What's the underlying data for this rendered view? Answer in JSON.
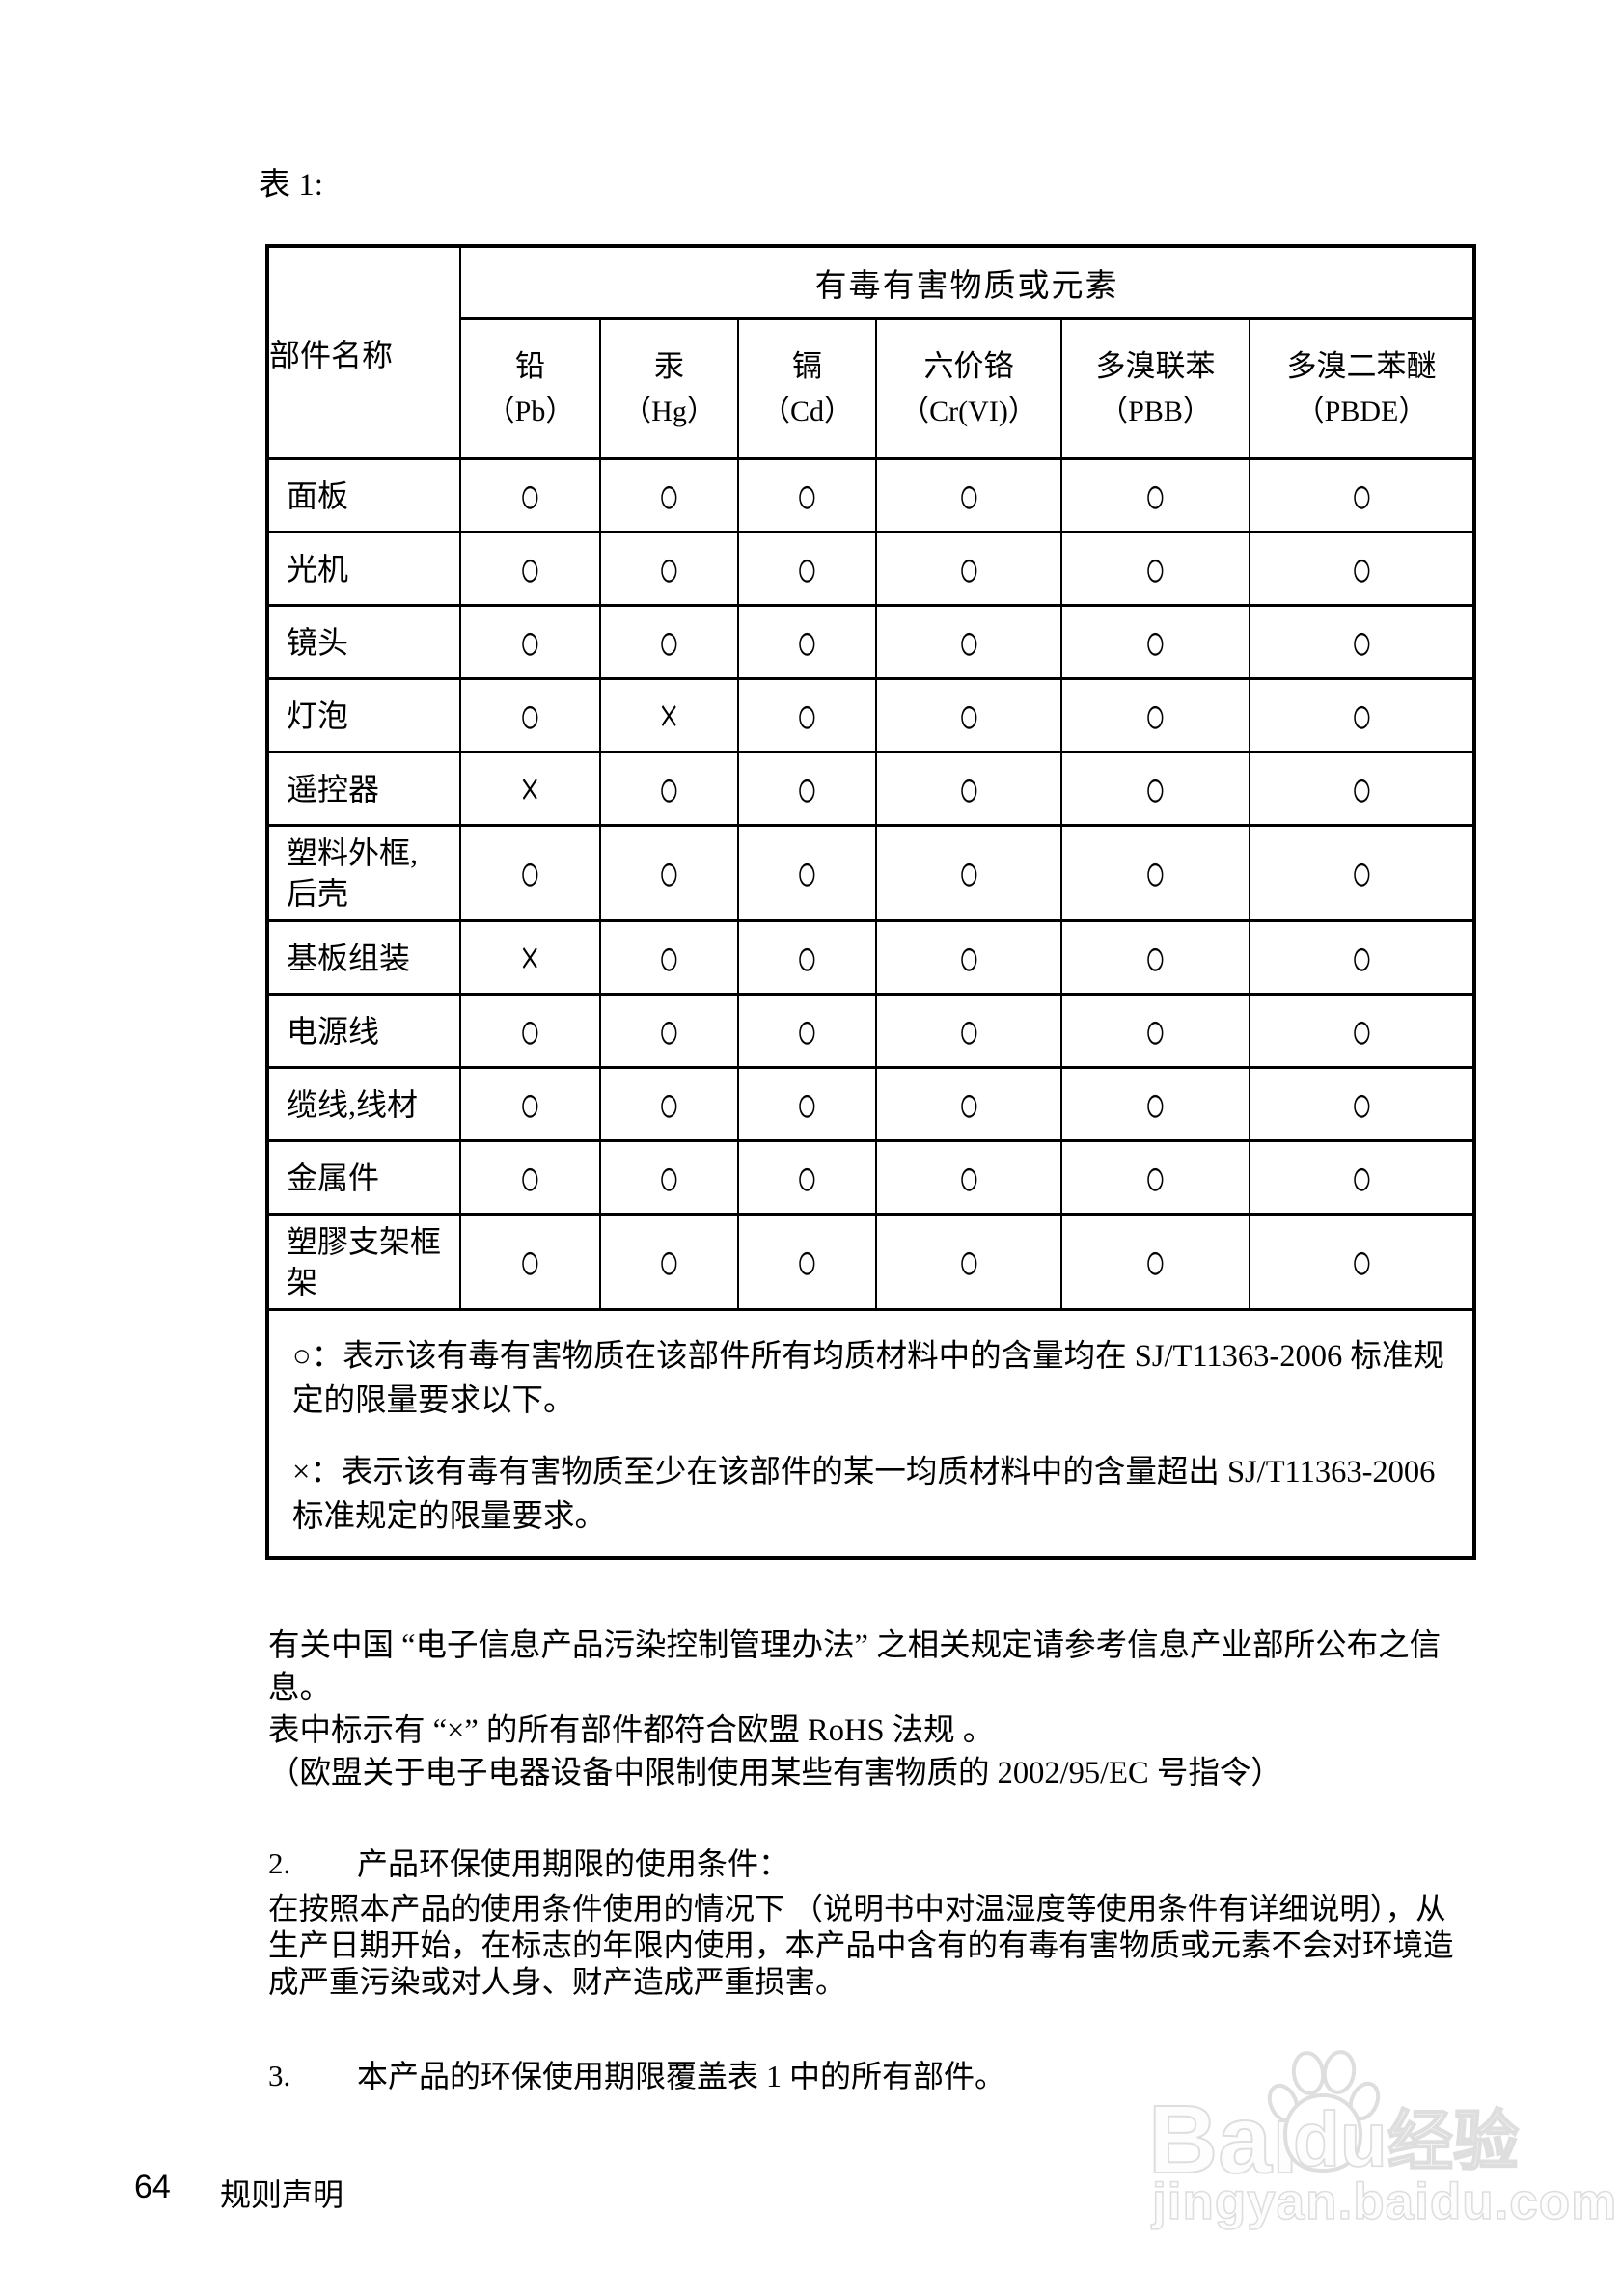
{
  "page": {
    "table_label": "表 1:",
    "footer": {
      "page_number": "64",
      "section_title": "规则声明"
    }
  },
  "table": {
    "corner_header": "部件名称",
    "span_header": "有毒有害物质或元素",
    "substances": [
      {
        "name": "铅",
        "symbol": "（Pb）"
      },
      {
        "name": "汞",
        "symbol": "（Hg）"
      },
      {
        "name": "镉",
        "symbol": "（Cd）"
      },
      {
        "name": "六价铬",
        "symbol": "（Cr(VI)）"
      },
      {
        "name": "多溴联苯",
        "symbol": "（PBB）"
      },
      {
        "name": "多溴二苯醚",
        "symbol": "（PBDE）"
      }
    ],
    "rows": [
      {
        "part": "面板",
        "values": [
          "○",
          "○",
          "○",
          "○",
          "○",
          "○"
        ]
      },
      {
        "part": "光机",
        "values": [
          "○",
          "○",
          "○",
          "○",
          "○",
          "○"
        ]
      },
      {
        "part": "镜头",
        "values": [
          "○",
          "○",
          "○",
          "○",
          "○",
          "○"
        ]
      },
      {
        "part": "灯泡",
        "values": [
          "○",
          "×",
          "○",
          "○",
          "○",
          "○"
        ]
      },
      {
        "part": "遥控器",
        "values": [
          "×",
          "○",
          "○",
          "○",
          "○",
          "○"
        ]
      },
      {
        "part": "塑料外框,后壳",
        "values": [
          "○",
          "○",
          "○",
          "○",
          "○",
          "○"
        ]
      },
      {
        "part": "基板组装",
        "values": [
          "×",
          "○",
          "○",
          "○",
          "○",
          "○"
        ]
      },
      {
        "part": "电源线",
        "values": [
          "○",
          "○",
          "○",
          "○",
          "○",
          "○"
        ]
      },
      {
        "part": "缆线,线材",
        "values": [
          "○",
          "○",
          "○",
          "○",
          "○",
          "○"
        ]
      },
      {
        "part": "金属件",
        "values": [
          "○",
          "○",
          "○",
          "○",
          "○",
          "○"
        ]
      },
      {
        "part": "塑膠支架框架",
        "values": [
          "○",
          "○",
          "○",
          "○",
          "○",
          "○"
        ]
      }
    ],
    "notes": [
      "○：表示该有毒有害物质在该部件所有均质材料中的含量均在 SJ/T11363-2006 标准规定的限量要求以下。",
      "×：表示该有毒有害物质至少在该部件的某一均质材料中的含量超出 SJ/T11363-2006 标准规定的限量要求。"
    ]
  },
  "paragraphs": {
    "china_regulation": "有关中国 “电子信息产品污染控制管理办法” 之相关规定请参考信息产业部所公布之信息。",
    "rohs_compliance": "表中标示有 “×” 的所有部件都符合欧盟 RoHS 法规 。",
    "eu_directive": "（欧盟关于电子电器设备中限制使用某些有害物质的 2002/95/EC 号指令）"
  },
  "items": [
    {
      "number": "2.",
      "heading": "产品环保使用期限的使用条件：",
      "body": "在按照本产品的使用条件使用的情况下 （说明书中对温湿度等使用条件有详细说明），从生产日期开始，在标志的年限内使用，本产品中含有的有毒有害物质或元素不会对环境造成严重污染或对人身、财产造成严重损害。"
    },
    {
      "number": "3.",
      "heading": "本产品的环保使用期限覆盖表 1 中的所有部件。",
      "body": ""
    }
  ],
  "watermark": {
    "logo_bai": "Bai",
    "logo_du": "du",
    "logo_suffix": "经验",
    "url": "jingyan.baidu.com"
  },
  "colors": {
    "text": "#000000",
    "border": "#000000",
    "background": "#ffffff",
    "watermark": "#dedede"
  }
}
